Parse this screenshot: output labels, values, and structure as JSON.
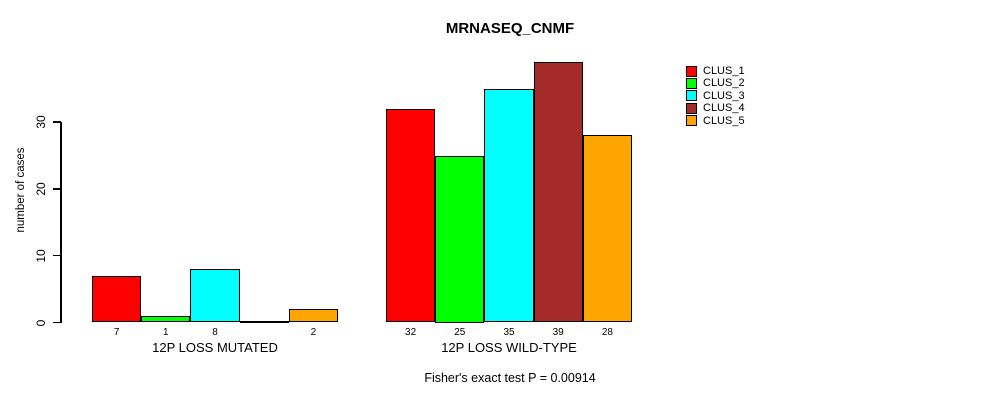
{
  "title": "MRNASEQ_CNMF",
  "footnote": "Fisher's exact test P = 0.00914",
  "colors": {
    "clus_1": "#FF0000",
    "clus_2": "#00FF00",
    "clus_3": "#00FFFF",
    "clus_4": "#A52A2A",
    "clus_5": "#FFA500",
    "axis": "#000000",
    "background": "#FFFFFF"
  },
  "chart_data": {
    "type": "bar",
    "title": "MRNASEQ_CNMF",
    "xlabel": "",
    "ylabel": "number of cases",
    "categories": [
      "12P LOSS MUTATED",
      "12P LOSS WILD-TYPE"
    ],
    "series": [
      {
        "name": "CLUS_1",
        "color": "#FF0000",
        "values": [
          7,
          32
        ]
      },
      {
        "name": "CLUS_2",
        "color": "#00FF00",
        "values": [
          1,
          25
        ]
      },
      {
        "name": "CLUS_3",
        "color": "#00FFFF",
        "values": [
          8,
          35
        ]
      },
      {
        "name": "CLUS_4",
        "color": "#A52A2A",
        "values": [
          0,
          39
        ]
      },
      {
        "name": "CLUS_5",
        "color": "#FFA500",
        "values": [
          2,
          28
        ]
      }
    ],
    "yticks": [
      0,
      10,
      20,
      30
    ],
    "ylim": [
      0,
      40
    ],
    "grid": false,
    "legend_position": "top-right-inside",
    "bar_value_labels": "shown under each bar; zero values have no bar and no label",
    "annotation": "Fisher's exact test P = 0.00914"
  }
}
